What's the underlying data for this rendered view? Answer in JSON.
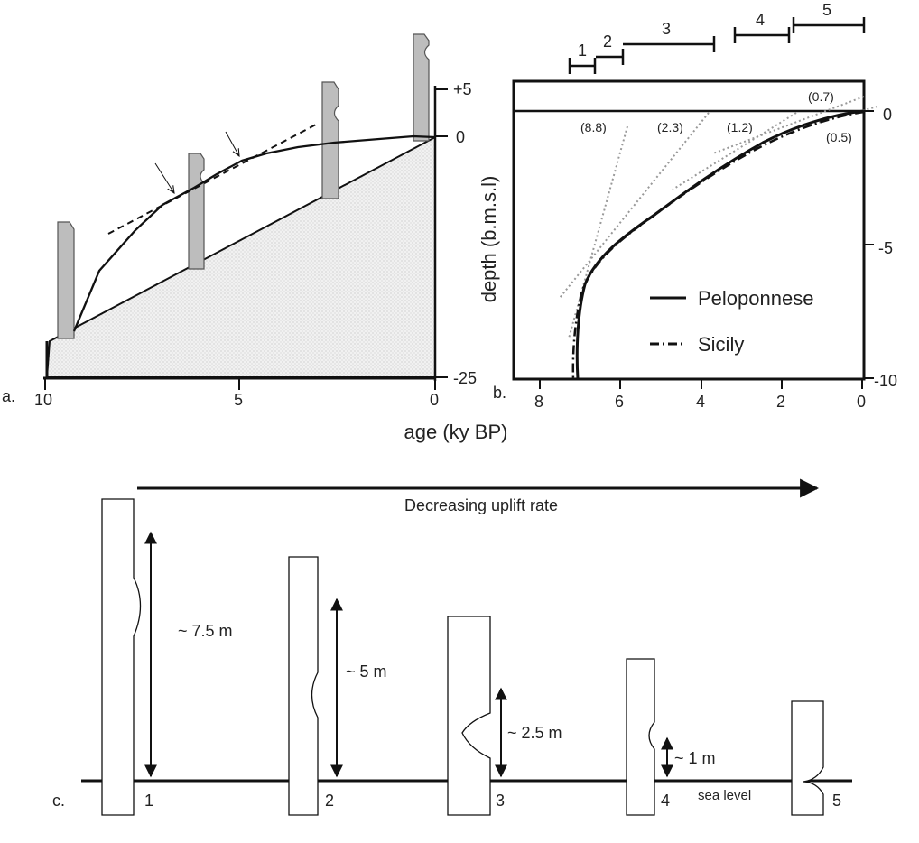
{
  "panel_a": {
    "letter": "a.",
    "y_labels": [
      "+5",
      "0",
      "-25"
    ],
    "x_labels": [
      "10",
      "5",
      "0"
    ]
  },
  "panel_b": {
    "letter": "b.",
    "y_title": "depth (b.m.s.l)",
    "y_labels": [
      "0",
      "-5",
      "-10"
    ],
    "x_labels": [
      "8",
      "6",
      "4",
      "2",
      "0"
    ],
    "rate_labels": [
      "(8.8)",
      "(2.3)",
      "(1.2)",
      "(0.7)",
      "(0.5)"
    ],
    "interval_labels": [
      "1",
      "2",
      "3",
      "4",
      "5"
    ],
    "legend": [
      {
        "name": "Peloponnese",
        "style": "solid"
      },
      {
        "name": "Sicily",
        "style": "dash-dot"
      }
    ]
  },
  "shared_x_title": "age (ky BP)",
  "panel_c": {
    "letter": "c.",
    "arrow_label": "Decreasing uplift rate",
    "sea_level_label": "sea level",
    "notches": [
      {
        "number": "1",
        "height_label": "~ 7.5 m"
      },
      {
        "number": "2",
        "height_label": "~ 5 m"
      },
      {
        "number": "3",
        "height_label": "~ 2.5 m"
      },
      {
        "number": "4",
        "height_label": "~ 1 m"
      },
      {
        "number": "5",
        "height_label": ""
      }
    ]
  }
}
